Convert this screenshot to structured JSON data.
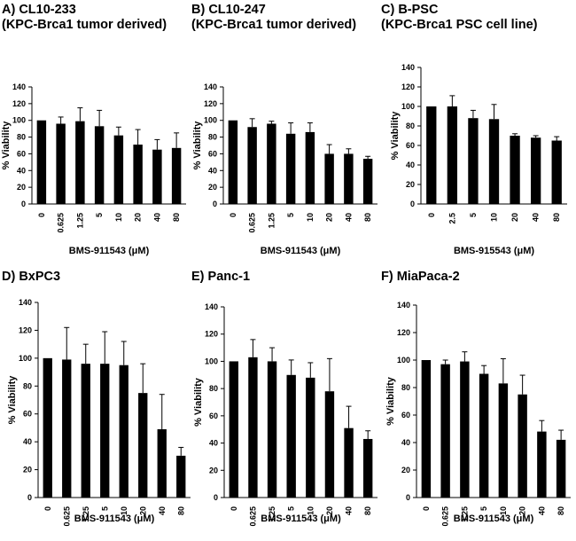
{
  "chart_data": [
    {
      "id": "A",
      "type": "bar",
      "title_line1": "A) CL10-233",
      "title_line2": "(KPC-Brca1 tumor derived)",
      "xlabel": "BMS-911543 (μM)",
      "ylabel": "% Viability",
      "ylim": [
        0,
        140
      ],
      "yticks": [
        0,
        20,
        40,
        60,
        80,
        100,
        120,
        140
      ],
      "ytick_labels": [
        "0",
        "20",
        "40",
        "60",
        "80",
        "100",
        "120",
        "140"
      ],
      "categories": [
        "0",
        "0.625",
        "1.25",
        "5",
        "10",
        "20",
        "40",
        "80"
      ],
      "values": [
        100,
        96,
        99,
        93,
        82,
        71,
        65,
        67
      ],
      "errors": [
        0,
        8,
        16,
        19,
        10,
        18,
        12,
        18
      ]
    },
    {
      "id": "B",
      "type": "bar",
      "title_line1": "B) CL10-247",
      "title_line2": "(KPC-Brca1 tumor derived)",
      "xlabel": "BMS-911543 (μM)",
      "ylabel": "% Viability",
      "ylim": [
        0,
        140
      ],
      "yticks": [
        0,
        20,
        40,
        60,
        80,
        100,
        120,
        140
      ],
      "ytick_labels": [
        "0",
        "20",
        "40",
        "60",
        "80",
        "100",
        "120",
        "140"
      ],
      "categories": [
        "0",
        "0.625",
        "1.25",
        "5",
        "10",
        "20",
        "40",
        "80"
      ],
      "values": [
        100,
        92,
        96,
        84,
        86,
        60,
        60,
        54
      ],
      "errors": [
        0,
        10,
        3,
        13,
        11,
        11,
        6,
        3
      ]
    },
    {
      "id": "C",
      "type": "bar",
      "title_line1": "C) B-PSC",
      "title_line2": "(KPC-Brca1 PSC cell line)",
      "xlabel": "BMS-915543 (μM)",
      "ylabel": "% Viability",
      "ylim": [
        0,
        140
      ],
      "yticks": [
        0,
        20,
        40,
        60,
        80,
        100,
        120,
        140
      ],
      "ytick_labels": [
        "0",
        "20",
        "40",
        "60",
        "80",
        "100",
        "120",
        "140"
      ],
      "categories": [
        "0",
        "2.5",
        "5",
        "10",
        "20",
        "40",
        "80"
      ],
      "values": [
        100,
        100,
        88,
        87,
        70,
        68,
        65
      ],
      "errors": [
        0,
        11,
        8,
        15,
        2,
        2,
        4
      ]
    },
    {
      "id": "D",
      "type": "bar",
      "title_line1": "D) BxPC3",
      "title_line2": "",
      "xlabel": "BMS-911543 (μM)",
      "ylabel": "% Viability",
      "ylim": [
        0,
        140
      ],
      "yticks": [
        0,
        20,
        40,
        60,
        80,
        100,
        120,
        140
      ],
      "ytick_labels": [
        "0",
        "20",
        "40",
        "60",
        "80",
        "100",
        "120",
        "140"
      ],
      "categories": [
        "0",
        "0.625",
        "1.25",
        "5",
        "10",
        "20",
        "40",
        "80"
      ],
      "values": [
        100,
        99,
        96,
        96,
        95,
        75,
        49,
        30
      ],
      "errors": [
        0,
        23,
        14,
        23,
        17,
        21,
        25,
        6
      ]
    },
    {
      "id": "E",
      "type": "bar",
      "title_line1": "E) Panc-1",
      "title_line2": "",
      "xlabel": "BMS-911543 (μM)",
      "ylabel": "% Viability",
      "ylim": [
        0,
        140
      ],
      "yticks": [
        0,
        20,
        40,
        60,
        80,
        100,
        120,
        140
      ],
      "ytick_labels": [
        "0",
        "20",
        "40",
        "60",
        "80",
        "100",
        "120",
        "140"
      ],
      "categories": [
        "0",
        "0.625",
        "1.25",
        "5",
        "10",
        "20",
        "40",
        "80"
      ],
      "values": [
        100,
        103,
        100,
        90,
        88,
        78,
        51,
        43
      ],
      "errors": [
        0,
        13,
        10,
        11,
        11,
        24,
        16,
        6
      ]
    },
    {
      "id": "F",
      "type": "bar",
      "title_line1": "F) MiaPaca-2",
      "title_line2": "",
      "xlabel": "BMS-911543 (μM)",
      "ylabel": "% Viability",
      "ylim": [
        0,
        140
      ],
      "yticks": [
        0,
        20,
        40,
        60,
        80,
        100,
        120,
        140
      ],
      "ytick_labels": [
        "0",
        "20",
        "40",
        "60",
        "80",
        "100",
        "120",
        "140"
      ],
      "categories": [
        "0",
        "0.625",
        "1.25",
        "5",
        "10",
        "20",
        "40",
        "80"
      ],
      "values": [
        100,
        97,
        99,
        90,
        83,
        75,
        48,
        42
      ],
      "errors": [
        0,
        3,
        7,
        6,
        18,
        14,
        8,
        7
      ]
    }
  ]
}
